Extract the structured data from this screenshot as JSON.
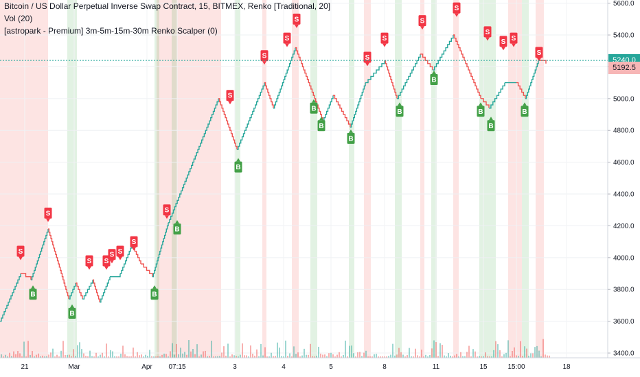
{
  "header": {
    "title": "Bitcoin / US Dollar Perpetual Inverse Swap Contract, 15, BITMEX, Renko [Traditional, 20]",
    "vol_label": "Vol (20)",
    "indicator_label": "[astropark - Premium] 3m-5m-15m-30m Renko Scalper (0)"
  },
  "price_tags": {
    "current": "5240.0",
    "secondary": "5192.5"
  },
  "colors": {
    "up": "#26a69a",
    "down": "#ef5350",
    "buy_bg": "rgba(76,175,80,0.16)",
    "sell_bg": "rgba(244,67,54,0.14)",
    "buy_label": "#43a047",
    "sell_label": "#f23645",
    "current_line": "#26a69a",
    "secondary_tag": "#f7b6b6"
  },
  "chart_data": {
    "type": "line",
    "title": "Bitcoin / US Dollar Perpetual Inverse Swap Contract, 15, BITMEX, Renko [Traditional, 20]",
    "y_axis_ticks": [
      "5600.0",
      "5400.0",
      "5200.0",
      "5000.0",
      "4800.0",
      "4600.0",
      "4400.0",
      "4200.0",
      "4000.0",
      "3800.0",
      "3600.0",
      "3400.0"
    ],
    "y_tick_values": [
      5600,
      5400,
      5200,
      5000,
      4800,
      4600,
      4400,
      4200,
      4000,
      3800,
      3600,
      3400
    ],
    "x_axis_ticks": [
      "21",
      "Mar",
      "Apr",
      "07:15",
      "3",
      "4",
      "5",
      "8",
      "11",
      "15",
      "15:00",
      "18"
    ],
    "x_tick_bars": [
      36,
      108,
      214,
      258,
      342,
      413,
      482,
      560,
      635,
      704,
      752,
      825
    ],
    "ylim": [
      3370,
      5620
    ],
    "xlim": [
      0,
      885
    ],
    "renko_path": [
      {
        "x": 0,
        "y": 3600
      },
      {
        "x": 30,
        "y": 3900
      },
      {
        "x": 45,
        "y": 3860
      },
      {
        "x": 70,
        "y": 4180
      },
      {
        "x": 100,
        "y": 3740
      },
      {
        "x": 110,
        "y": 3840
      },
      {
        "x": 120,
        "y": 3740
      },
      {
        "x": 135,
        "y": 3860
      },
      {
        "x": 145,
        "y": 3720
      },
      {
        "x": 160,
        "y": 3880
      },
      {
        "x": 175,
        "y": 3900
      },
      {
        "x": 192,
        "y": 4080
      },
      {
        "x": 205,
        "y": 3960
      },
      {
        "x": 222,
        "y": 3880
      },
      {
        "x": 245,
        "y": 4220
      },
      {
        "x": 318,
        "y": 5000
      },
      {
        "x": 345,
        "y": 4680
      },
      {
        "x": 385,
        "y": 5100
      },
      {
        "x": 398,
        "y": 4940
      },
      {
        "x": 430,
        "y": 5320
      },
      {
        "x": 458,
        "y": 5000
      },
      {
        "x": 470,
        "y": 4860
      },
      {
        "x": 485,
        "y": 5020
      },
      {
        "x": 510,
        "y": 4820
      },
      {
        "x": 532,
        "y": 5100
      },
      {
        "x": 560,
        "y": 5240
      },
      {
        "x": 578,
        "y": 5000
      },
      {
        "x": 612,
        "y": 5280
      },
      {
        "x": 630,
        "y": 5180
      },
      {
        "x": 660,
        "y": 5400
      },
      {
        "x": 700,
        "y": 5000
      },
      {
        "x": 712,
        "y": 4940
      },
      {
        "x": 735,
        "y": 5100
      },
      {
        "x": 752,
        "y": 5100
      },
      {
        "x": 765,
        "y": 5000
      },
      {
        "x": 784,
        "y": 5240
      },
      {
        "x": 795,
        "y": 5220
      }
    ],
    "sell_signals": [
      {
        "x": 30,
        "y": 4040
      },
      {
        "x": 70,
        "y": 4280
      },
      {
        "x": 130,
        "y": 3980
      },
      {
        "x": 155,
        "y": 3980
      },
      {
        "x": 163,
        "y": 4020
      },
      {
        "x": 175,
        "y": 4040
      },
      {
        "x": 195,
        "y": 4100
      },
      {
        "x": 243,
        "y": 4300
      },
      {
        "x": 335,
        "y": 5020
      },
      {
        "x": 385,
        "y": 5270
      },
      {
        "x": 432,
        "y": 5500
      },
      {
        "x": 418,
        "y": 5380
      },
      {
        "x": 535,
        "y": 5260
      },
      {
        "x": 560,
        "y": 5380
      },
      {
        "x": 615,
        "y": 5490
      },
      {
        "x": 665,
        "y": 5570
      },
      {
        "x": 710,
        "y": 5420
      },
      {
        "x": 733,
        "y": 5360
      },
      {
        "x": 748,
        "y": 5380
      },
      {
        "x": 785,
        "y": 5290
      }
    ],
    "buy_signals": [
      {
        "x": 48,
        "y": 3770
      },
      {
        "x": 105,
        "y": 3650
      },
      {
        "x": 225,
        "y": 3770
      },
      {
        "x": 258,
        "y": 4180
      },
      {
        "x": 347,
        "y": 4570
      },
      {
        "x": 457,
        "y": 4940
      },
      {
        "x": 468,
        "y": 4830
      },
      {
        "x": 511,
        "y": 4750
      },
      {
        "x": 582,
        "y": 4920
      },
      {
        "x": 632,
        "y": 5120
      },
      {
        "x": 700,
        "y": 4920
      },
      {
        "x": 715,
        "y": 4830
      },
      {
        "x": 764,
        "y": 4920
      }
    ],
    "buy_bands": [
      [
        98,
        112
      ],
      [
        225,
        232
      ],
      [
        250,
        258
      ],
      [
        342,
        350
      ],
      [
        452,
        462
      ],
      [
        508,
        516
      ],
      [
        575,
        585
      ],
      [
        628,
        636
      ],
      [
        698,
        722
      ],
      [
        760,
        770
      ]
    ],
    "sell_bands": [
      [
        0,
        70
      ],
      [
        228,
        322
      ],
      [
        382,
        388
      ],
      [
        425,
        435
      ],
      [
        530,
        540
      ],
      [
        612,
        618
      ],
      [
        660,
        668
      ],
      [
        740,
        760
      ],
      [
        780,
        792
      ]
    ]
  }
}
